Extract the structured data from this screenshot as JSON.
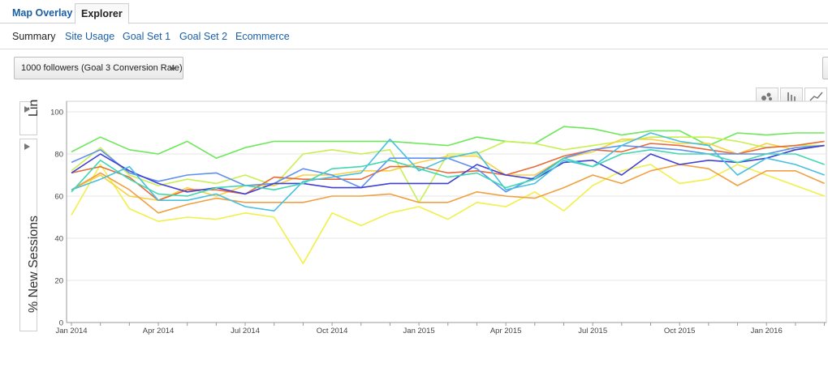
{
  "tabs": [
    {
      "label": "Map Overlay",
      "active": false
    },
    {
      "label": "Explorer",
      "active": true
    }
  ],
  "subtabs": [
    {
      "label": "Summary",
      "current": true
    },
    {
      "label": "Site Usage",
      "current": false
    },
    {
      "label": "Goal Set 1",
      "current": false
    },
    {
      "label": "Goal Set 2",
      "current": false
    },
    {
      "label": "Ecommerce",
      "current": false
    }
  ],
  "metric_selector": {
    "value": "1000 followers (Goal 3 Conversion Rate)"
  },
  "side_panel": {
    "scale_label": "Lin",
    "metric_label": "% New Sessions"
  },
  "view_buttons": [
    {
      "name": "bubble-chart-icon"
    },
    {
      "name": "bar-chart-icon"
    },
    {
      "name": "line-chart-icon"
    }
  ],
  "colors": {
    "link": "#1a5fa6",
    "grid": "#e6e6e6"
  },
  "chart_data": {
    "type": "line",
    "ylabel": "% New Sessions",
    "ylim": [
      0,
      100
    ],
    "yticks": [
      0,
      20,
      40,
      60,
      80,
      100
    ],
    "xlim": [
      "2014-01",
      "2016-03"
    ],
    "x": [
      "2014-01",
      "2014-02",
      "2014-03",
      "2014-04",
      "2014-05",
      "2014-06",
      "2014-07",
      "2014-08",
      "2014-09",
      "2014-10",
      "2014-11",
      "2014-12",
      "2015-01",
      "2015-02",
      "2015-03",
      "2015-04",
      "2015-05",
      "2015-06",
      "2015-07",
      "2015-08",
      "2015-09",
      "2015-10",
      "2015-11",
      "2015-12",
      "2016-01",
      "2016-02",
      "2016-03"
    ],
    "xticks": [
      {
        "x": "2014-01",
        "label": "Jan 2014"
      },
      {
        "x": "2014-04",
        "label": "Apr 2014"
      },
      {
        "x": "2014-07",
        "label": "Jul 2014"
      },
      {
        "x": "2014-10",
        "label": "Oct 2014"
      },
      {
        "x": "2015-01",
        "label": "Jan 2015"
      },
      {
        "x": "2015-04",
        "label": "Apr 2015"
      },
      {
        "x": "2015-07",
        "label": "Jul 2015"
      },
      {
        "x": "2015-10",
        "label": "Oct 2015"
      },
      {
        "x": "2016-01",
        "label": "Jan 2016"
      }
    ],
    "series": [
      {
        "color": "#6de85a",
        "values": [
          81,
          88,
          82,
          80,
          86,
          78,
          83,
          86,
          86,
          86,
          86,
          86,
          85,
          84,
          88,
          86,
          85,
          93,
          92,
          89,
          91,
          91,
          84,
          90,
          89,
          90,
          90
        ]
      },
      {
        "color": "#c8f050",
        "values": [
          72,
          83,
          70,
          65,
          68,
          66,
          70,
          65,
          80,
          82,
          80,
          82,
          57,
          80,
          80,
          86,
          85,
          82,
          84,
          86,
          88,
          88,
          88,
          86,
          83,
          84,
          84
        ]
      },
      {
        "color": "#f0f048",
        "values": [
          51,
          75,
          54,
          48,
          50,
          49,
          52,
          50,
          28,
          52,
          46,
          52,
          55,
          49,
          57,
          55,
          62,
          53,
          65,
          72,
          75,
          66,
          68,
          75,
          70,
          65,
          60
        ]
      },
      {
        "color": "#f8d040",
        "values": [
          63,
          70,
          60,
          58,
          64,
          60,
          65,
          65,
          70,
          70,
          72,
          72,
          76,
          79,
          79,
          70,
          70,
          78,
          81,
          87,
          87,
          85,
          85,
          80,
          85,
          82,
          84
        ]
      },
      {
        "color": "#f0a040",
        "values": [
          63,
          71,
          63,
          52,
          56,
          59,
          57,
          57,
          57,
          60,
          60,
          61,
          57,
          57,
          62,
          60,
          59,
          64,
          70,
          66,
          72,
          75,
          73,
          65,
          72,
          72,
          66
        ]
      },
      {
        "color": "#e86a38",
        "values": [
          71,
          74,
          69,
          58,
          63,
          63,
          61,
          69,
          68,
          68,
          68,
          74,
          74,
          71,
          72,
          70,
          74,
          79,
          82,
          81,
          85,
          84,
          82,
          80,
          83,
          84,
          86
        ]
      },
      {
        "color": "#6090f0",
        "values": [
          76,
          82,
          71,
          67,
          70,
          71,
          65,
          66,
          73,
          70,
          64,
          78,
          78,
          78,
          73,
          62,
          69,
          78,
          82,
          84,
          83,
          82,
          80,
          80,
          80,
          83,
          84
        ]
      },
      {
        "color": "#4040d8",
        "values": [
          71,
          80,
          72,
          66,
          62,
          64,
          61,
          66,
          66,
          64,
          64,
          66,
          66,
          66,
          75,
          70,
          68,
          76,
          77,
          70,
          80,
          75,
          77,
          76,
          78,
          82,
          84
        ]
      },
      {
        "color": "#48c0e0",
        "values": [
          63,
          68,
          74,
          58,
          58,
          61,
          55,
          53,
          67,
          69,
          71,
          87,
          72,
          78,
          81,
          63,
          66,
          77,
          74,
          84,
          90,
          86,
          84,
          70,
          78,
          75,
          70
        ]
      },
      {
        "color": "#40d8b0",
        "values": [
          62,
          77,
          68,
          61,
          60,
          64,
          65,
          63,
          66,
          73,
          74,
          77,
          73,
          69,
          71,
          64,
          68,
          78,
          74,
          80,
          82,
          80,
          80,
          76,
          80,
          80,
          75
        ]
      }
    ]
  }
}
